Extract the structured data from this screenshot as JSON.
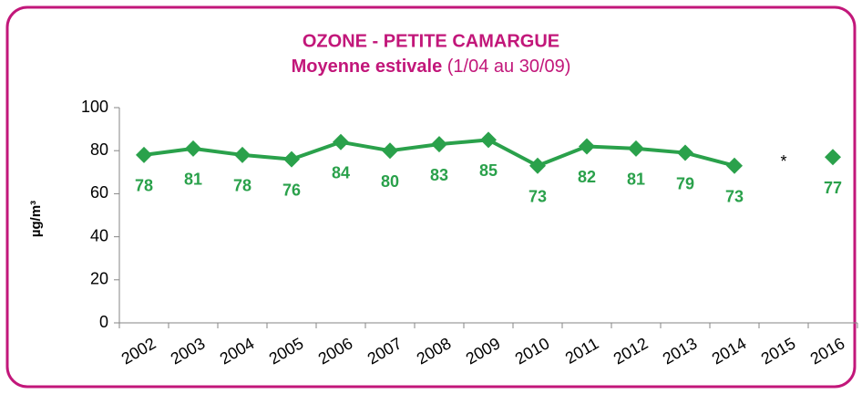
{
  "chart_data": {
    "type": "line",
    "title": "OZONE - PETITE CAMARGUE",
    "subtitle": [
      "Moyenne estivale",
      "(1/04 au 30/09)"
    ],
    "y_label": "µg/m³",
    "categories": [
      "2002",
      "2003",
      "2004",
      "2005",
      "2006",
      "2007",
      "2008",
      "2009",
      "2010",
      "2011",
      "2012",
      "2013",
      "2014",
      "2015",
      "2016"
    ],
    "series": [
      {
        "name": "Moyenne estivale",
        "color": "#2aa14b",
        "values": [
          78,
          81,
          78,
          76,
          84,
          80,
          83,
          85,
          73,
          82,
          81,
          79,
          73,
          null,
          77
        ]
      }
    ],
    "note": "*",
    "ylim": [
      0,
      100
    ],
    "yticks": [
      0,
      20,
      40,
      60,
      80,
      100
    ],
    "grid": false
  }
}
